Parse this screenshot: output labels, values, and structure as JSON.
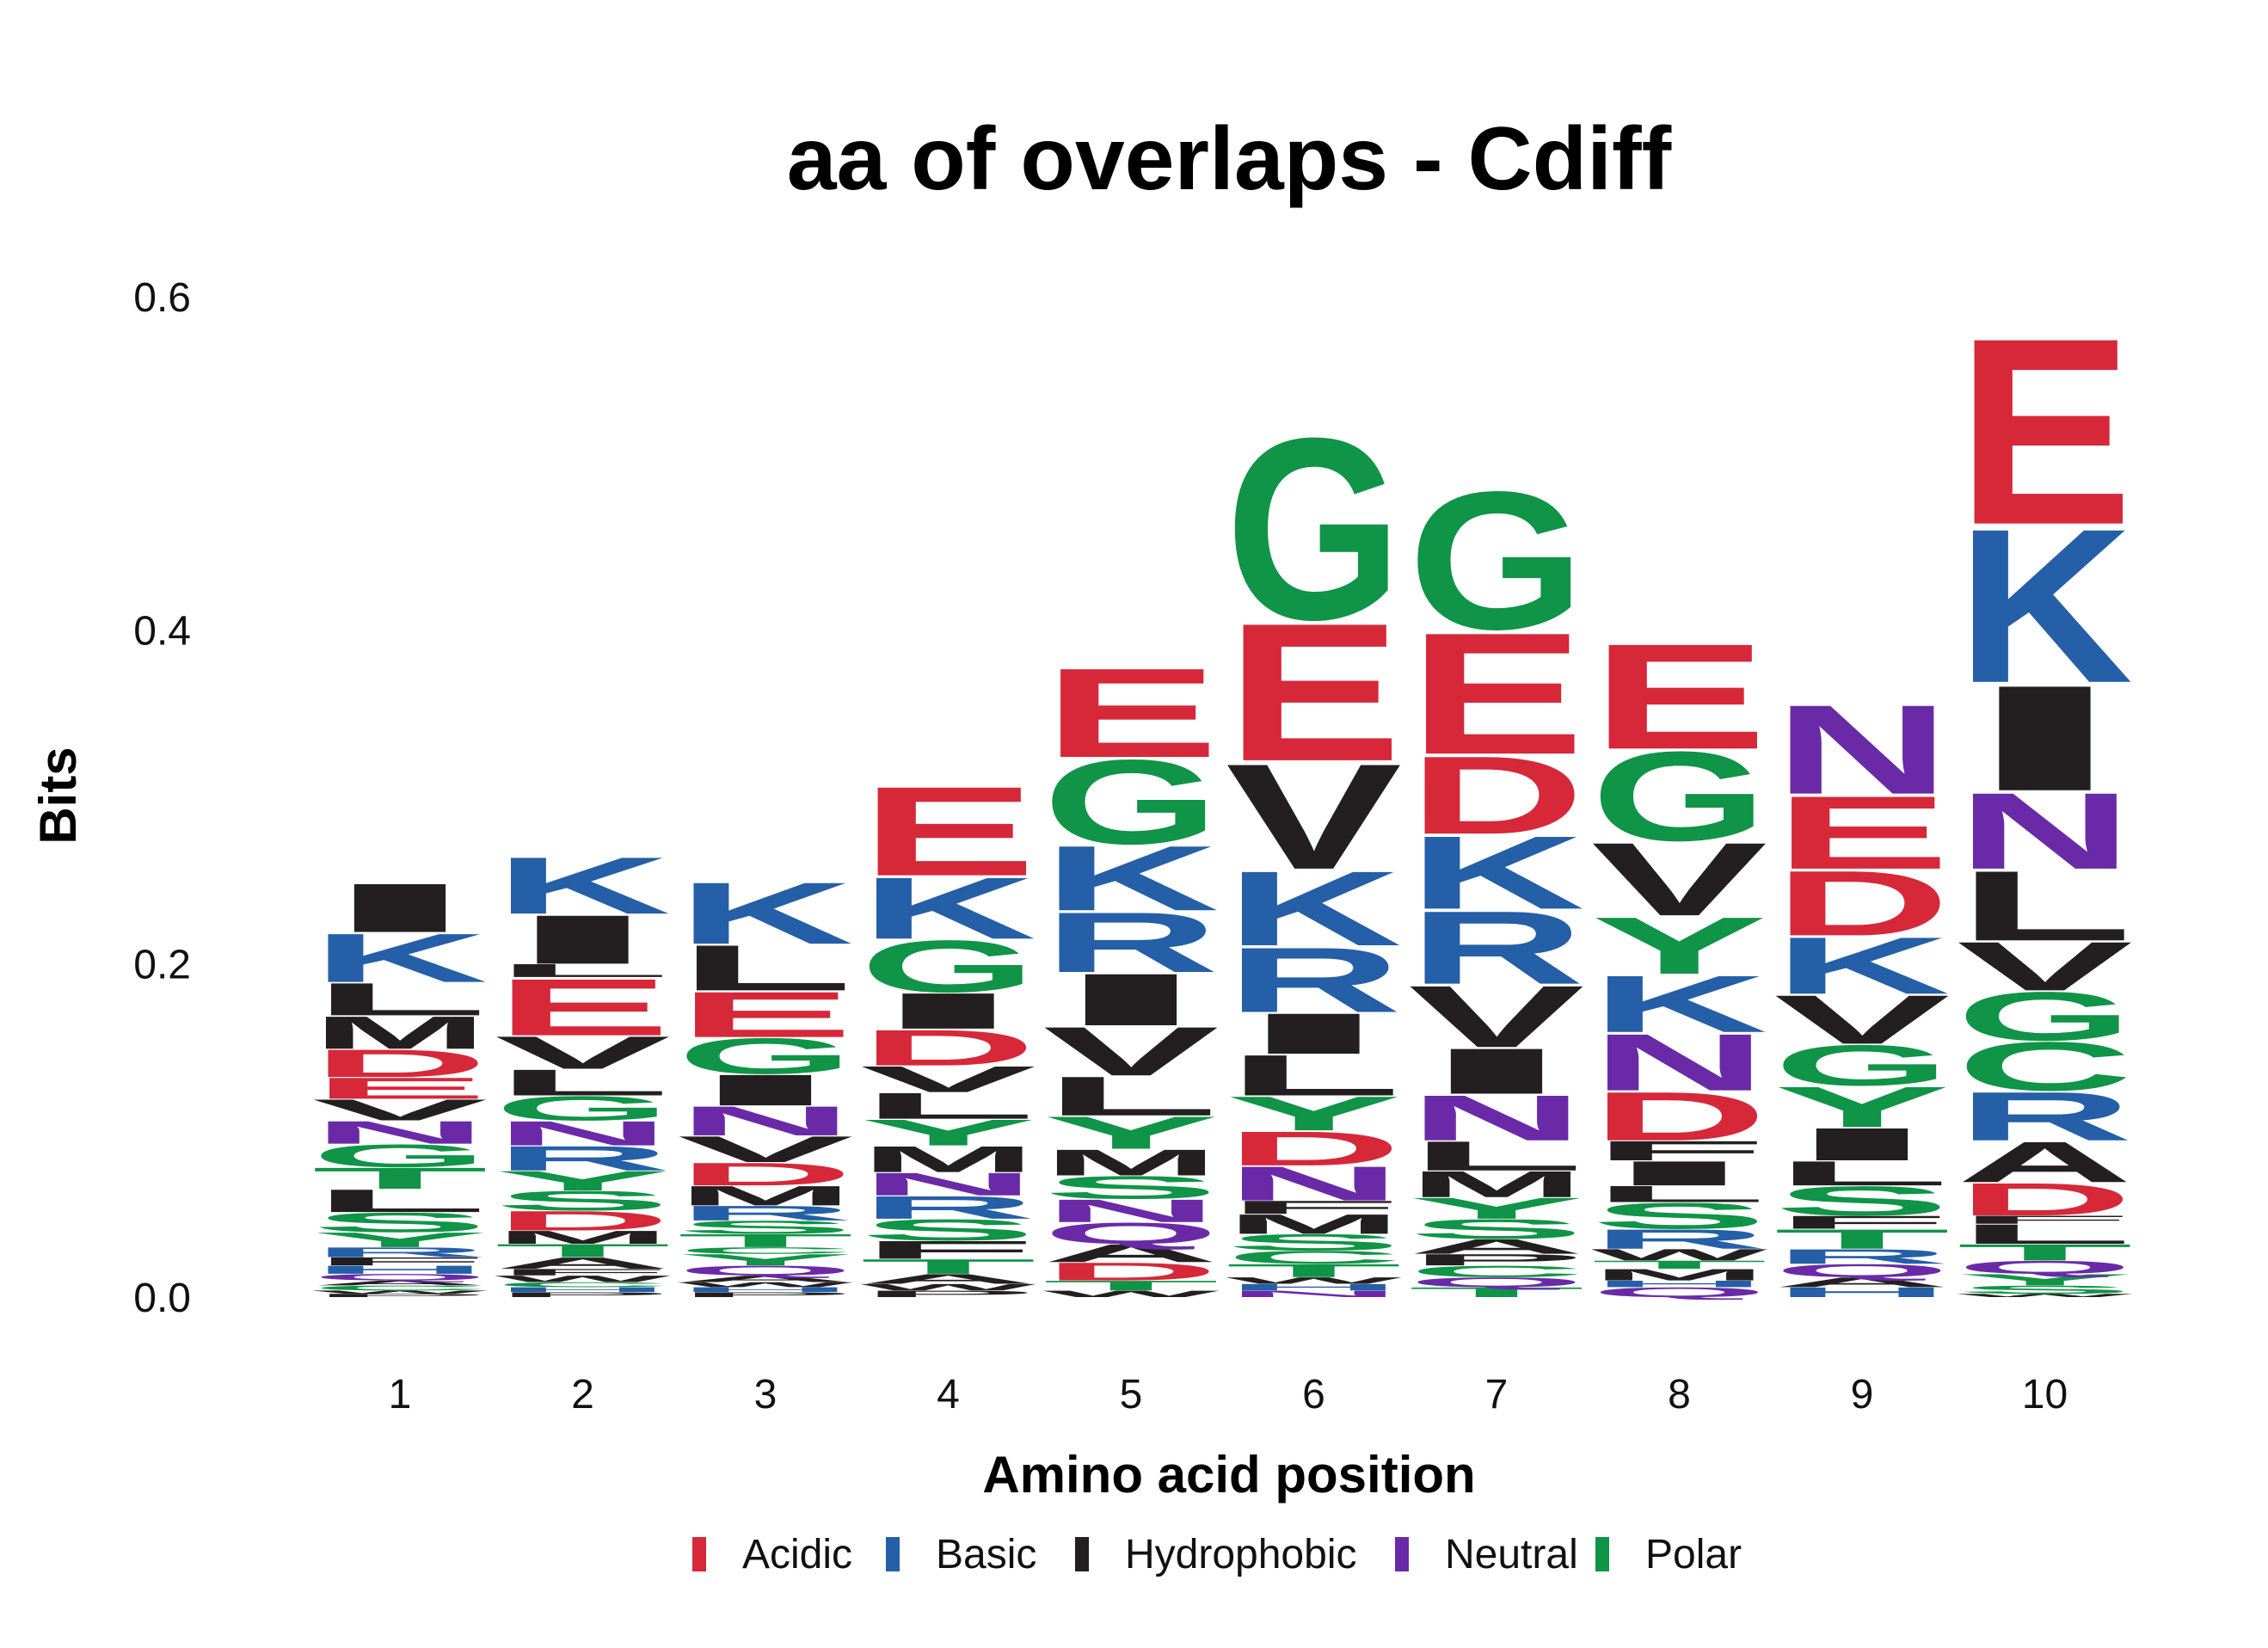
{
  "chart_data": {
    "type": "sequence-logo",
    "title": "aa of overlaps - Cdiff",
    "xlabel": "Amino acid position",
    "ylabel": "Bits",
    "ylim": [
      0,
      0.6
    ],
    "yticks": [
      "0.0",
      "0.2",
      "0.4",
      "0.6"
    ],
    "positions": [
      "1",
      "2",
      "3",
      "4",
      "5",
      "6",
      "7",
      "8",
      "9",
      "10"
    ],
    "legend": [
      {
        "name": "Acidic",
        "color": "#d62839"
      },
      {
        "name": "Basic",
        "color": "#245fa8"
      },
      {
        "name": "Hydrophobic",
        "color": "#231f20"
      },
      {
        "name": "Neutral",
        "color": "#6a2aa8"
      },
      {
        "name": "Polar",
        "color": "#109447"
      }
    ],
    "class_colors": {
      "Acidic": "#d62839",
      "Basic": "#245fa8",
      "Hydrophobic": "#231f20",
      "Neutral": "#6a2aa8",
      "Polar": "#109447"
    },
    "residue_class": {
      "D": "Acidic",
      "E": "Acidic",
      "K": "Basic",
      "R": "Basic",
      "H": "Basic",
      "A": "Hydrophobic",
      "V": "Hydrophobic",
      "L": "Hydrophobic",
      "I": "Hydrophobic",
      "M": "Hydrophobic",
      "F": "Hydrophobic",
      "W": "Hydrophobic",
      "P": "Hydrophobic",
      "N": "Neutral",
      "Q": "Neutral",
      "G": "Polar",
      "S": "Polar",
      "T": "Polar",
      "Y": "Polar",
      "C": "Polar"
    },
    "stacks": [
      [
        [
          "P",
          0.002
        ],
        [
          "W",
          0.002
        ],
        [
          "C",
          0.003
        ],
        [
          "A",
          0.003
        ],
        [
          "Q",
          0.004
        ],
        [
          "H",
          0.005
        ],
        [
          "F",
          0.005
        ],
        [
          "R",
          0.006
        ],
        [
          "Y",
          0.009
        ],
        [
          "S",
          0.012
        ],
        [
          "L",
          0.014
        ],
        [
          "T",
          0.013
        ],
        [
          "G",
          0.014
        ],
        [
          "N",
          0.014
        ],
        [
          "V",
          0.013
        ],
        [
          "E",
          0.013
        ],
        [
          "D",
          0.017
        ],
        [
          "M",
          0.02
        ],
        [
          "L",
          0.02
        ],
        [
          "K",
          0.03
        ],
        [
          "I",
          0.03
        ]
      ],
      [
        [
          "P",
          0.003
        ],
        [
          "H",
          0.003
        ],
        [
          "C",
          0.003
        ],
        [
          "W",
          0.004
        ],
        [
          "F",
          0.004
        ],
        [
          "A",
          0.007
        ],
        [
          "T",
          0.008
        ],
        [
          "M",
          0.008
        ],
        [
          "D",
          0.012
        ],
        [
          "S",
          0.012
        ],
        [
          "Y",
          0.012
        ],
        [
          "R",
          0.015
        ],
        [
          "N",
          0.015
        ],
        [
          "G",
          0.015
        ],
        [
          "L",
          0.016
        ],
        [
          "V",
          0.02
        ],
        [
          "E",
          0.035
        ],
        [
          "L",
          0.008
        ],
        [
          "I",
          0.03
        ],
        [
          "K",
          0.035
        ]
      ],
      [
        [
          "P",
          0.003
        ],
        [
          "H",
          0.003
        ],
        [
          "W",
          0.003
        ],
        [
          "A",
          0.004
        ],
        [
          "Q",
          0.006
        ],
        [
          "Y",
          0.007
        ],
        [
          "C",
          0.004
        ],
        [
          "T",
          0.008
        ],
        [
          "S",
          0.008
        ],
        [
          "R",
          0.009
        ],
        [
          "M",
          0.012
        ],
        [
          "D",
          0.014
        ],
        [
          "V",
          0.016
        ],
        [
          "N",
          0.018
        ],
        [
          "I",
          0.019
        ],
        [
          "G",
          0.022
        ],
        [
          "E",
          0.028
        ],
        [
          "L",
          0.028
        ],
        [
          "K",
          0.038
        ]
      ],
      [
        [
          "P",
          0.004
        ],
        [
          "W",
          0.004
        ],
        [
          "A",
          0.006
        ],
        [
          "T",
          0.009
        ],
        [
          "F",
          0.011
        ],
        [
          "S",
          0.013
        ],
        [
          "R",
          0.014
        ],
        [
          "N",
          0.014
        ],
        [
          "M",
          0.016
        ],
        [
          "Y",
          0.016
        ],
        [
          "L",
          0.016
        ],
        [
          "V",
          0.016
        ],
        [
          "D",
          0.022
        ],
        [
          "I",
          0.022
        ],
        [
          "G",
          0.032
        ],
        [
          "K",
          0.038
        ],
        [
          "E",
          0.055
        ]
      ],
      [
        [
          "W",
          0.004
        ],
        [
          "T",
          0.006
        ],
        [
          "D",
          0.011
        ],
        [
          "A",
          0.011
        ],
        [
          "Q",
          0.013
        ],
        [
          "N",
          0.014
        ],
        [
          "S",
          0.014
        ],
        [
          "M",
          0.016
        ],
        [
          "Y",
          0.02
        ],
        [
          "L",
          0.024
        ],
        [
          "V",
          0.03
        ],
        [
          "I",
          0.032
        ],
        [
          "R",
          0.037
        ],
        [
          "K",
          0.04
        ],
        [
          "G",
          0.052
        ],
        [
          "E",
          0.055
        ]
      ],
      [
        [
          "N",
          0.004
        ],
        [
          "H",
          0.004
        ],
        [
          "W",
          0.004
        ],
        [
          "T",
          0.008
        ],
        [
          "C",
          0.008
        ],
        [
          "S",
          0.01
        ],
        [
          "M",
          0.012
        ],
        [
          "F",
          0.008
        ],
        [
          "N",
          0.021
        ],
        [
          "D",
          0.021
        ],
        [
          "Y",
          0.021
        ],
        [
          "L",
          0.025
        ],
        [
          "I",
          0.025
        ],
        [
          "R",
          0.04
        ],
        [
          "K",
          0.046
        ],
        [
          "V",
          0.065
        ],
        [
          "E",
          0.085
        ],
        [
          "G",
          0.112
        ]
      ],
      [
        [
          "T",
          0.006
        ],
        [
          "Q",
          0.006
        ],
        [
          "C",
          0.007
        ],
        [
          "P",
          0.007
        ],
        [
          "A",
          0.009
        ],
        [
          "S",
          0.012
        ],
        [
          "Y",
          0.013
        ],
        [
          "M",
          0.016
        ],
        [
          "L",
          0.018
        ],
        [
          "N",
          0.028
        ],
        [
          "I",
          0.028
        ],
        [
          "V",
          0.038
        ],
        [
          "R",
          0.045
        ],
        [
          "K",
          0.045
        ],
        [
          "D",
          0.048
        ],
        [
          "E",
          0.075
        ],
        [
          "G",
          0.085
        ]
      ],
      [
        [
          "Q",
          0.006
        ],
        [
          "H",
          0.004
        ],
        [
          "M",
          0.007
        ],
        [
          "T",
          0.005
        ],
        [
          "W",
          0.007
        ],
        [
          "R",
          0.012
        ],
        [
          "S",
          0.016
        ],
        [
          "L",
          0.01
        ],
        [
          "I",
          0.015
        ],
        [
          "F",
          0.012
        ],
        [
          "D",
          0.03
        ],
        [
          "N",
          0.035
        ],
        [
          "K",
          0.035
        ],
        [
          "Y",
          0.035
        ],
        [
          "V",
          0.045
        ],
        [
          "G",
          0.055
        ],
        [
          "E",
          0.065
        ]
      ],
      [
        [
          "H",
          0.006
        ],
        [
          "A",
          0.006
        ],
        [
          "Q",
          0.008
        ],
        [
          "R",
          0.009
        ],
        [
          "T",
          0.012
        ],
        [
          "F",
          0.008
        ],
        [
          "S",
          0.018
        ],
        [
          "L",
          0.015
        ],
        [
          "I",
          0.02
        ],
        [
          "Y",
          0.025
        ],
        [
          "G",
          0.025
        ],
        [
          "V",
          0.03
        ],
        [
          "K",
          0.035
        ],
        [
          "D",
          0.04
        ],
        [
          "E",
          0.045
        ],
        [
          "N",
          0.055
        ]
      ],
      [
        [
          "W",
          0.002
        ],
        [
          "S",
          0.005
        ],
        [
          "Y",
          0.007
        ],
        [
          "Q",
          0.008
        ],
        [
          "T",
          0.01
        ],
        [
          "L",
          0.012
        ],
        [
          "F",
          0.005
        ],
        [
          "D",
          0.02
        ],
        [
          "A",
          0.025
        ],
        [
          "R",
          0.03
        ],
        [
          "C",
          0.03
        ],
        [
          "G",
          0.03
        ],
        [
          "V",
          0.03
        ],
        [
          "L",
          0.043
        ],
        [
          "N",
          0.047
        ],
        [
          "I",
          0.065
        ],
        [
          "K",
          0.095
        ],
        [
          "E",
          0.115
        ]
      ]
    ]
  }
}
